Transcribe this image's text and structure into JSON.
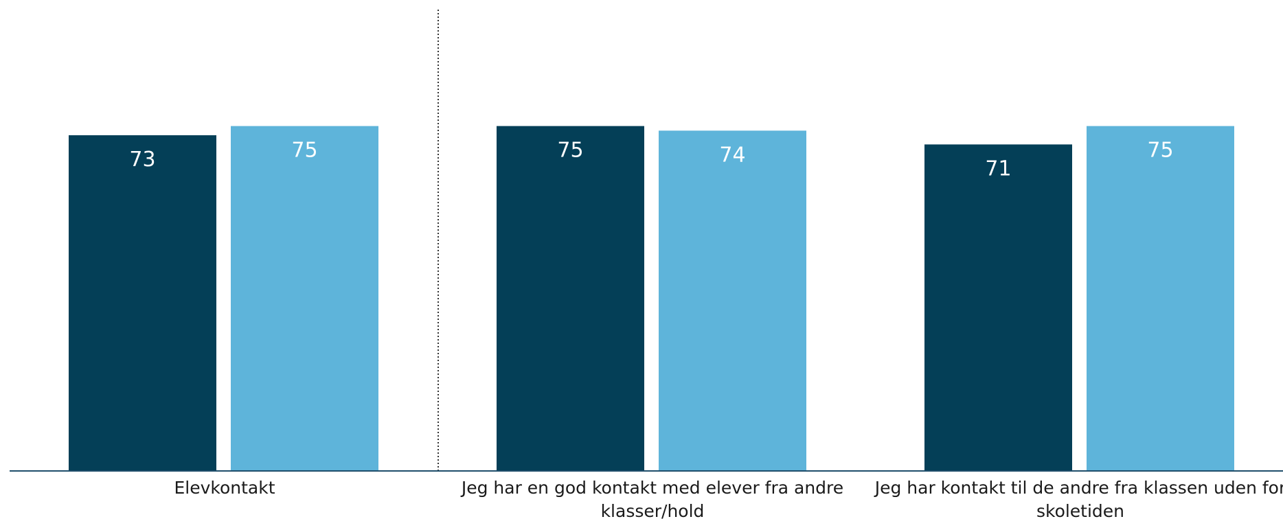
{
  "chart_data": {
    "type": "bar",
    "categories": [
      "Elevkontakt",
      "Jeg har en god kontakt med elever fra andre klasser/hold",
      "Jeg har kontakt til de andre fra klassen uden for skoletiden"
    ],
    "category_label_lines": [
      [
        "Elevkontakt"
      ],
      [
        "Jeg har en god kontakt med elever fra andre",
        "klasser/hold"
      ],
      [
        "Jeg har kontakt til de andre fra klassen uden for",
        "skoletiden"
      ]
    ],
    "series": [
      {
        "values": [
          73,
          75,
          71
        ],
        "color": "#043f57"
      },
      {
        "values": [
          75,
          74,
          75
        ],
        "color": "#5eb4da"
      }
    ],
    "ylim": [
      0,
      100
    ],
    "grid": false,
    "legend": "none",
    "separator_after_category": 1,
    "axis_color": "#1f4e6b"
  }
}
